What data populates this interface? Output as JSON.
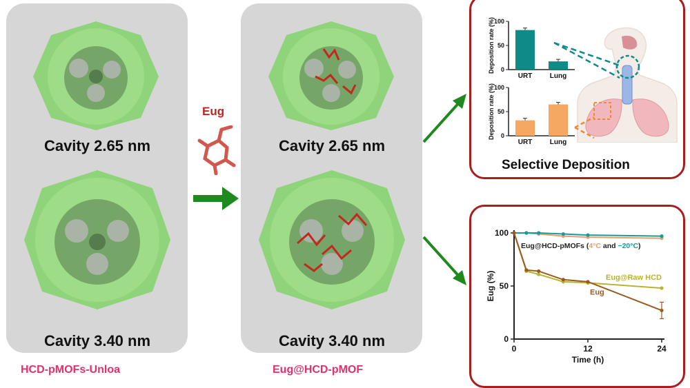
{
  "left_panel": {
    "top_label": "Cavity 2.65 nm",
    "bottom_label": "Cavity 3.40 nm",
    "caption": "HCD-pMOFs-Unloa"
  },
  "middle_panel": {
    "top_label": "Cavity 2.65 nm",
    "bottom_label": "Cavity 3.40 nm",
    "caption": "Eug@HCD-pMOF"
  },
  "loading": {
    "label": "Eug"
  },
  "deposition": {
    "title": "Selective Deposition",
    "colors": {
      "teal": "#0f8a86",
      "orange": "#f4a862",
      "lung": "#f0b8bc"
    }
  },
  "chart_data": [
    {
      "type": "bar",
      "categories": [
        "URT",
        "Lung"
      ],
      "values": [
        82,
        17
      ],
      "ylabel": "Deposition rate (%)",
      "ylim": [
        0,
        100
      ],
      "yticks": [
        "0",
        "50",
        "100"
      ]
    },
    {
      "type": "bar",
      "categories": [
        "URT",
        "Lung"
      ],
      "values": [
        32,
        65
      ],
      "ylabel": "Deposition rate (%)",
      "ylim": [
        0,
        100
      ],
      "yticks": [
        "0",
        "50",
        "100"
      ]
    },
    {
      "type": "line",
      "xlabel": "Time (h)",
      "ylabel": "Eug (%)",
      "xlim": [
        0,
        24
      ],
      "ylim": [
        0,
        100
      ],
      "xticks": [
        "0",
        "12",
        "24"
      ],
      "yticks": [
        "0",
        "50",
        "100"
      ],
      "series": [
        {
          "name": "4°C",
          "color": "#e3a070",
          "x": [
            0,
            2,
            4,
            8,
            12,
            24
          ],
          "y": [
            100,
            100,
            99,
            97,
            96,
            95
          ]
        },
        {
          "name": "−20°C",
          "color": "#1a9a9a",
          "x": [
            0,
            2,
            4,
            8,
            12,
            24
          ],
          "y": [
            100,
            100,
            100,
            99,
            98,
            97
          ]
        },
        {
          "name": "Eug@Raw HCD",
          "color": "#b8b52a",
          "x": [
            0,
            2,
            4,
            8,
            12,
            24
          ],
          "y": [
            100,
            64,
            61,
            54,
            53,
            48
          ]
        },
        {
          "name": "Eug",
          "color": "#9a5a1e",
          "x": [
            0,
            2,
            4,
            8,
            12,
            24
          ],
          "y": [
            100,
            65,
            64,
            56,
            54,
            27
          ]
        }
      ],
      "annotations": {
        "legend_prefix": "Eug@HCD-pMOFs (",
        "legend_4c": "4°C",
        "legend_and": " and ",
        "legend_m20": "−20°C",
        "legend_suffix": ")",
        "raw_label": "Eug@Raw HCD",
        "eug_label": "Eug"
      }
    }
  ]
}
